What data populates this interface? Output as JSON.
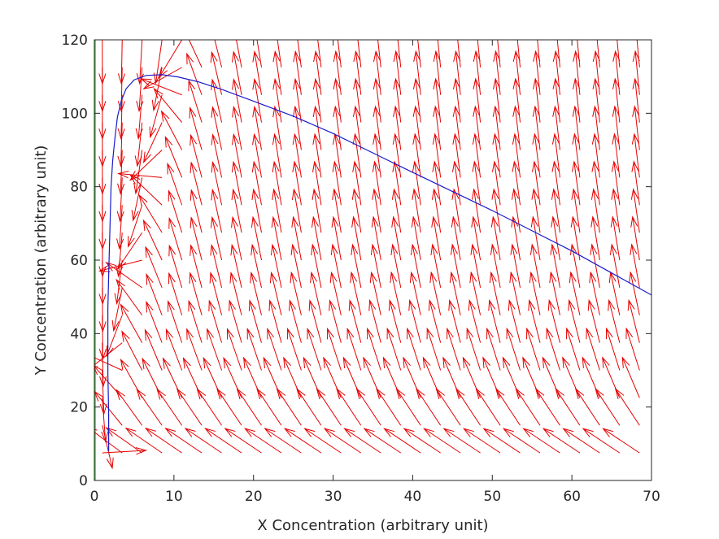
{
  "chart_data": {
    "type": "quiver",
    "title": "",
    "xlabel": "X Concentration (arbitrary unit)",
    "ylabel": "Y Concentration (arbitrary unit)",
    "xlim": [
      0,
      70
    ],
    "ylim": [
      0,
      120
    ],
    "xticks": [
      0,
      10,
      20,
      30,
      40,
      50,
      60,
      70
    ],
    "yticks": [
      0,
      20,
      40,
      60,
      80,
      100,
      120
    ],
    "grid": false,
    "legend": "none",
    "colors": {
      "vector_field": "#e60000",
      "trajectory": "#1a1acc",
      "nullcline": "#33cc33",
      "axes": "#262626"
    },
    "nullcline": {
      "x": [
        0,
        0
      ],
      "y": [
        0,
        120
      ]
    },
    "vector_field": {
      "x_grid": [
        1,
        3.5,
        6,
        8.5,
        11,
        13.5,
        16,
        18.5,
        21,
        23.5,
        26,
        28.5,
        31,
        33.5,
        36,
        38.5,
        41,
        43.5,
        46,
        48.5,
        51,
        53.5,
        56,
        58.5,
        61,
        63.5,
        66,
        68.5
      ],
      "y_grid": [
        0,
        7.5,
        15,
        22.5,
        30,
        37.5,
        45,
        52.5,
        60,
        67.5,
        75,
        82.5,
        90,
        97.5,
        105,
        112.5,
        120
      ],
      "direction_model": {
        "dx": "1 - 0.8*x",
        "dy": "x*y/5 - 0.02*y*y - 0.35*x"
      },
      "display_length": 5.5
    },
    "trajectory": {
      "x": [
        70,
        65,
        60,
        55,
        50,
        45,
        40,
        35,
        30,
        25,
        20,
        16,
        13,
        10.5,
        8.5,
        6.5,
        5,
        4,
        3.4,
        2.9,
        2.6,
        2.3,
        2.1,
        2.0,
        1.9,
        1.8,
        1.7,
        1.7,
        1.7,
        1.8,
        1.8
      ],
      "y": [
        50.5,
        56.5,
        62.5,
        68,
        73.5,
        78.7,
        83.9,
        89.2,
        94.5,
        99.2,
        103.3,
        106.5,
        108.6,
        109.9,
        110.5,
        110.3,
        109.1,
        106.7,
        103.5,
        99,
        93.5,
        87,
        80,
        72,
        64,
        56,
        47,
        38,
        29,
        18,
        8
      ]
    }
  }
}
